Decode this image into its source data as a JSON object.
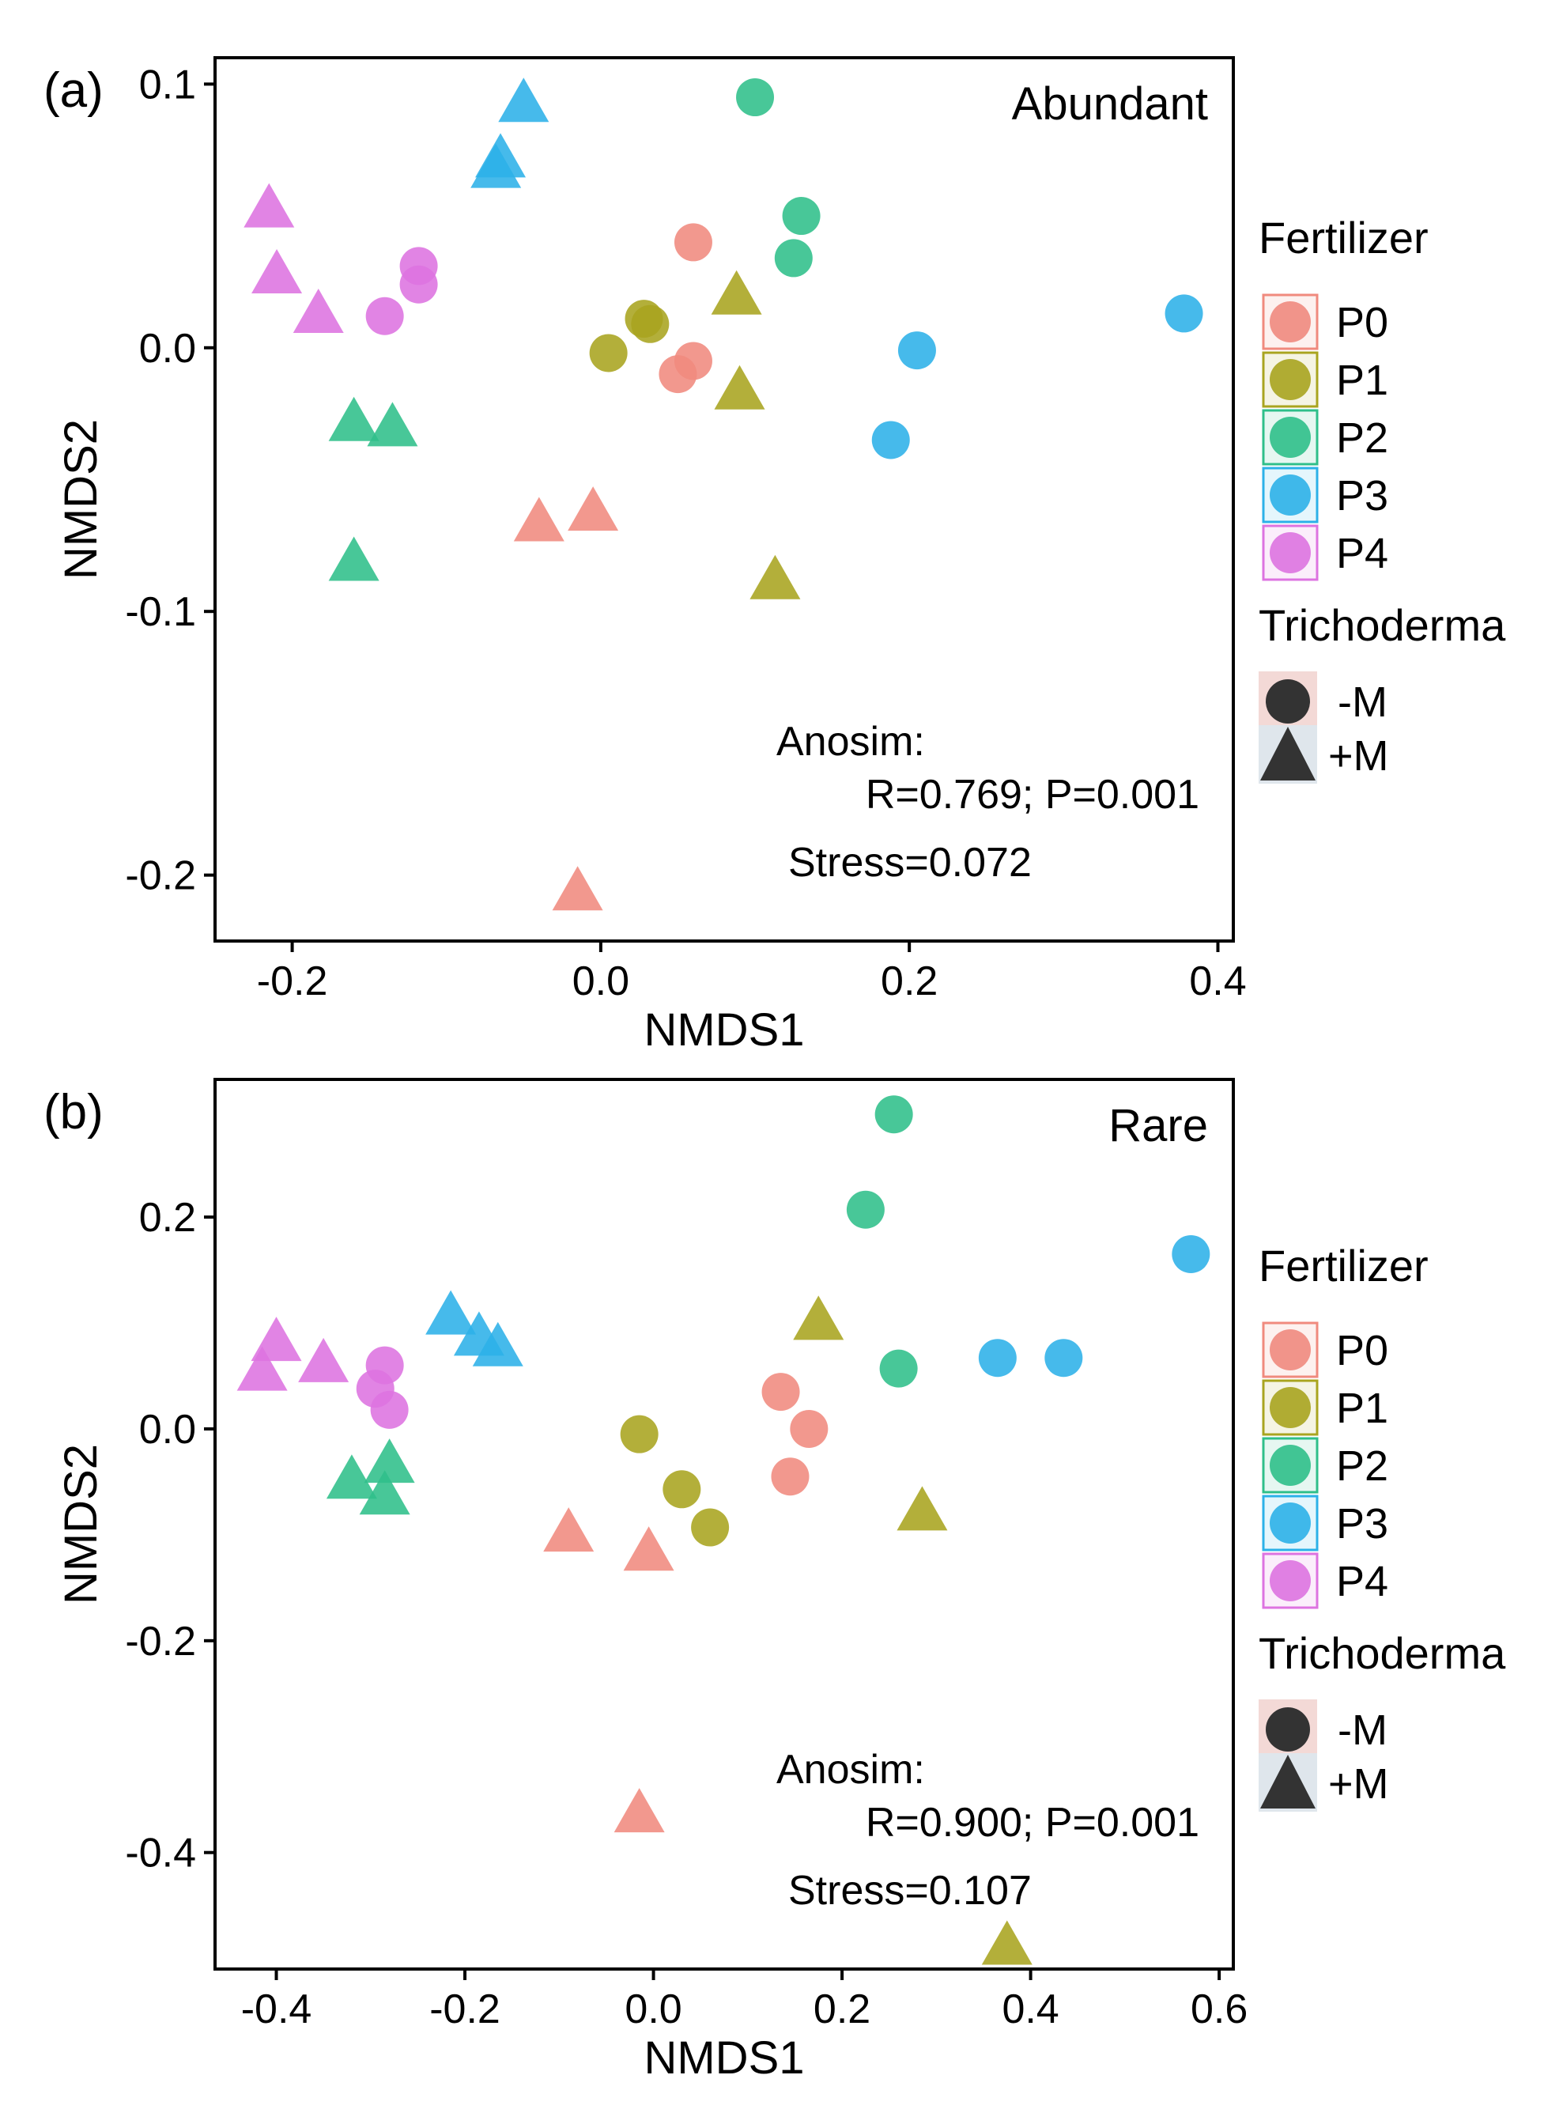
{
  "colors": {
    "P0": "#F08A7E",
    "P1": "#A9A41F",
    "P2": "#2FBF8A",
    "P3": "#2CB1E8",
    "P4": "#DD73E0",
    "key": "#333333"
  },
  "chart_data": [
    {
      "type": "scatter",
      "panel_label": "(a)",
      "title": "Abundant",
      "xlabel": "NMDS1",
      "ylabel": "NMDS2",
      "xlim": [
        -0.25,
        0.41
      ],
      "ylim": [
        -0.225,
        0.11
      ],
      "xticks": [
        -0.2,
        0.0,
        0.2,
        0.4
      ],
      "xtick_labels": [
        "-0.2",
        "0.0",
        "0.2",
        "0.4"
      ],
      "yticks": [
        -0.2,
        -0.1,
        0.0,
        0.1
      ],
      "ytick_labels": [
        "-0.2",
        "-0.1",
        "0.0",
        "0.1"
      ],
      "annotations": {
        "anosim_label": "Anosim:",
        "anosim_stats": "R=0.769; P=0.001",
        "stress": "Stress=0.072"
      },
      "series": [
        {
          "name": "P0 -M",
          "fertilizer": "P0",
          "trichoderma": "-M",
          "x": [
            0.06,
            0.05,
            0.06
          ],
          "y": [
            0.04,
            -0.01,
            -0.005
          ]
        },
        {
          "name": "P0 +M",
          "fertilizer": "P0",
          "trichoderma": "+M",
          "x": [
            -0.04,
            -0.005,
            -0.015
          ],
          "y": [
            -0.067,
            -0.063,
            -0.207
          ]
        },
        {
          "name": "P1 -M",
          "fertilizer": "P1",
          "trichoderma": "-M",
          "x": [
            0.005,
            0.028,
            0.032
          ],
          "y": [
            -0.002,
            0.011,
            0.009
          ]
        },
        {
          "name": "P1 +M",
          "fertilizer": "P1",
          "trichoderma": "+M",
          "x": [
            0.088,
            0.09,
            0.113
          ],
          "y": [
            0.019,
            -0.017,
            -0.089
          ]
        },
        {
          "name": "P2 -M",
          "fertilizer": "P2",
          "trichoderma": "-M",
          "x": [
            0.1,
            0.13,
            0.125
          ],
          "y": [
            0.095,
            0.05,
            0.034
          ]
        },
        {
          "name": "P2 +M",
          "fertilizer": "P2",
          "trichoderma": "+M",
          "x": [
            -0.16,
            -0.135,
            -0.16
          ],
          "y": [
            -0.029,
            -0.031,
            -0.082
          ]
        },
        {
          "name": "P3 -M",
          "fertilizer": "P3",
          "trichoderma": "-M",
          "x": [
            0.205,
            0.188,
            0.378
          ],
          "y": [
            -0.001,
            -0.035,
            0.013
          ]
        },
        {
          "name": "P3 +M",
          "fertilizer": "P3",
          "trichoderma": "+M",
          "x": [
            -0.05,
            -0.065,
            -0.068
          ],
          "y": [
            0.092,
            0.071,
            0.067
          ]
        },
        {
          "name": "P4 -M",
          "fertilizer": "P4",
          "trichoderma": "-M",
          "x": [
            -0.118,
            -0.118,
            -0.14
          ],
          "y": [
            0.031,
            0.024,
            0.012
          ]
        },
        {
          "name": "P4 +M",
          "fertilizer": "P4",
          "trichoderma": "+M",
          "x": [
            -0.215,
            -0.21,
            -0.183
          ],
          "y": [
            0.052,
            0.027,
            0.012
          ]
        }
      ],
      "legend": {
        "fertilizer_title": "Fertilizer",
        "fertilizer_items": [
          "P0",
          "P1",
          "P2",
          "P3",
          "P4"
        ],
        "trichoderma_title": "Trichoderma",
        "trichoderma_items": [
          "-M",
          "+M"
        ]
      }
    },
    {
      "type": "scatter",
      "panel_label": "(b)",
      "title": "Rare",
      "xlabel": "NMDS1",
      "ylabel": "NMDS2",
      "xlim": [
        -0.465,
        0.615
      ],
      "ylim": [
        -0.51,
        0.33
      ],
      "xticks": [
        -0.4,
        -0.2,
        0.0,
        0.2,
        0.4,
        0.6
      ],
      "xtick_labels": [
        "-0.4",
        "-0.2",
        "0.0",
        "0.2",
        "0.4",
        "0.6"
      ],
      "yticks": [
        -0.4,
        -0.2,
        0.0,
        0.2
      ],
      "ytick_labels": [
        "-0.4",
        "-0.2",
        "0.0",
        "0.2"
      ],
      "annotations": {
        "anosim_label": "Anosim:",
        "anosim_stats": "R=0.900; P=0.001",
        "stress": "Stress=0.107"
      },
      "series": [
        {
          "name": "P0 -M",
          "fertilizer": "P0",
          "trichoderma": "-M",
          "x": [
            0.135,
            0.165,
            0.145
          ],
          "y": [
            0.035,
            0.0,
            -0.045
          ]
        },
        {
          "name": "P0 +M",
          "fertilizer": "P0",
          "trichoderma": "+M",
          "x": [
            -0.09,
            -0.005,
            -0.015
          ],
          "y": [
            -0.1,
            -0.118,
            -0.365
          ]
        },
        {
          "name": "P1 -M",
          "fertilizer": "P1",
          "trichoderma": "-M",
          "x": [
            -0.015,
            0.03,
            0.06
          ],
          "y": [
            -0.005,
            -0.057,
            -0.093
          ]
        },
        {
          "name": "P1 +M",
          "fertilizer": "P1",
          "trichoderma": "+M",
          "x": [
            0.175,
            0.285,
            0.375
          ],
          "y": [
            0.1,
            -0.08,
            -0.49
          ]
        },
        {
          "name": "P2 -M",
          "fertilizer": "P2",
          "trichoderma": "-M",
          "x": [
            0.255,
            0.225,
            0.26
          ],
          "y": [
            0.297,
            0.207,
            0.057
          ]
        },
        {
          "name": "P2 +M",
          "fertilizer": "P2",
          "trichoderma": "+M",
          "x": [
            -0.32,
            -0.28,
            -0.285
          ],
          "y": [
            -0.05,
            -0.035,
            -0.065
          ]
        },
        {
          "name": "P3 -M",
          "fertilizer": "P3",
          "trichoderma": "-M",
          "x": [
            0.365,
            0.435,
            0.57
          ],
          "y": [
            0.067,
            0.067,
            0.165
          ]
        },
        {
          "name": "P3 +M",
          "fertilizer": "P3",
          "trichoderma": "+M",
          "x": [
            -0.215,
            -0.185,
            -0.165
          ],
          "y": [
            0.105,
            0.085,
            0.075
          ]
        },
        {
          "name": "P4 -M",
          "fertilizer": "P4",
          "trichoderma": "-M",
          "x": [
            -0.285,
            -0.295,
            -0.28
          ],
          "y": [
            0.06,
            0.038,
            0.018
          ]
        },
        {
          "name": "P4 +M",
          "fertilizer": "P4",
          "trichoderma": "+M",
          "x": [
            -0.4,
            -0.415,
            -0.35
          ],
          "y": [
            0.08,
            0.052,
            0.06
          ]
        }
      ],
      "legend": {
        "fertilizer_title": "Fertilizer",
        "fertilizer_items": [
          "P0",
          "P1",
          "P2",
          "P3",
          "P4"
        ],
        "trichoderma_title": "Trichoderma",
        "trichoderma_items": [
          "-M",
          "+M"
        ]
      }
    }
  ]
}
